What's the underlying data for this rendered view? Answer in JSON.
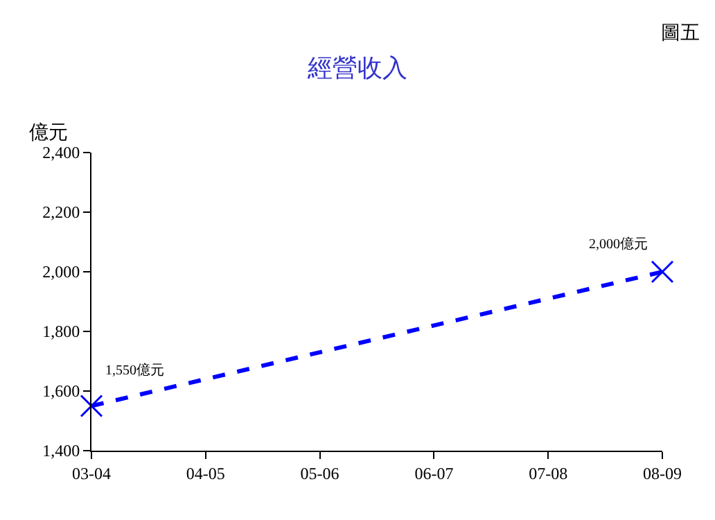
{
  "chart_data": {
    "type": "line",
    "title": "經營收入",
    "ylabel": "億元",
    "categories": [
      "03-04",
      "04-05",
      "05-06",
      "06-07",
      "07-08",
      "08-09"
    ],
    "series": [
      {
        "color": "#0000ff",
        "values": [
          1550,
          1640,
          1730,
          1820,
          1910,
          2000
        ],
        "marker": "none",
        "line_style": "dashed"
      },
      {
        "type": "scatter",
        "color": "#0000ff",
        "values": [
          1550,
          null,
          null,
          null,
          null,
          2000
        ],
        "marker": "cross"
      }
    ],
    "ylim": [
      1400,
      2400
    ],
    "yticks": [
      {
        "value": 1400,
        "label": "1,400"
      },
      {
        "value": 1600,
        "label": "1,600"
      },
      {
        "value": 1800,
        "label": "1,800"
      },
      {
        "value": 2000,
        "label": "2,000"
      },
      {
        "value": 2200,
        "label": "2,200"
      },
      {
        "value": 2400,
        "label": "2,400"
      }
    ],
    "grid": false,
    "annotations": [
      "圖五",
      {
        "text": "1,550億元",
        "x": "03-04",
        "y": 1550
      },
      {
        "text": "2,000億元",
        "x": "08-09",
        "y": 2000
      }
    ]
  }
}
